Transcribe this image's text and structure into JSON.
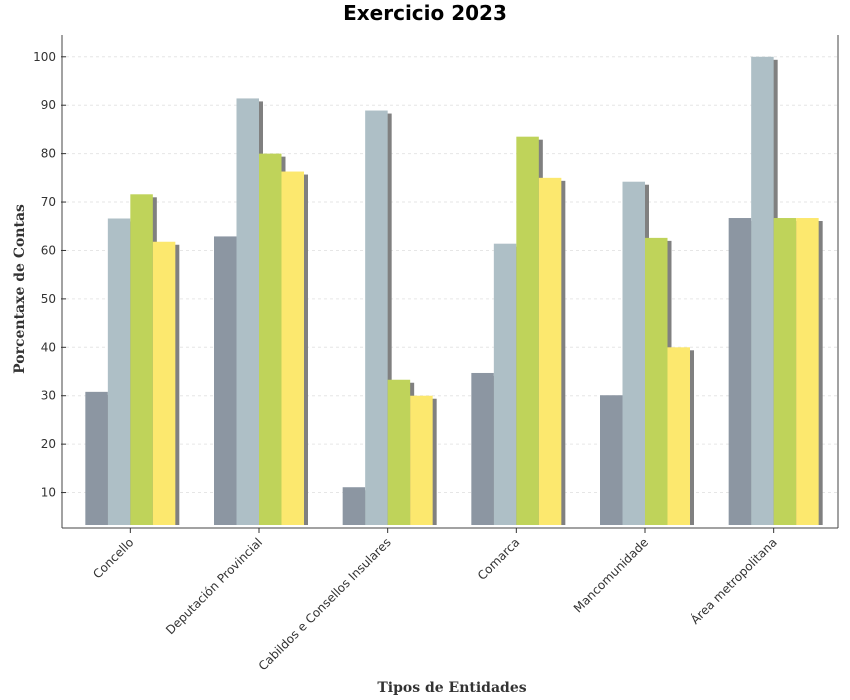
{
  "chart_data": {
    "type": "bar",
    "title": "Exercicio 2023",
    "xlabel": "Tipos de Entidades",
    "ylabel": "Porcentaxe de Contas",
    "ylim": [
      3.3,
      104.5
    ],
    "yticks": [
      10,
      20,
      30,
      40,
      50,
      60,
      70,
      80,
      90,
      100
    ],
    "grid": true,
    "categories": [
      "Concello",
      "Deputación Provincial",
      "Cabildos e Consellos Insulares",
      "Comarca",
      "Mancomunidade",
      "Área metropolitana"
    ],
    "series": [
      {
        "color": "#8c96a2",
        "values": [
          30.8,
          62.9,
          11.1,
          34.7,
          30.1,
          66.7
        ]
      },
      {
        "color": "#aebfc6",
        "values": [
          66.6,
          91.4,
          88.9,
          61.4,
          74.2,
          100.0
        ]
      },
      {
        "color": "#bfd35a",
        "values": [
          71.6,
          80.0,
          33.3,
          83.5,
          62.6,
          66.7
        ]
      },
      {
        "color": "#fce86e",
        "values": [
          61.8,
          76.3,
          30.0,
          75.0,
          40.0,
          66.7
        ]
      }
    ],
    "shadow_color": "#808080"
  }
}
